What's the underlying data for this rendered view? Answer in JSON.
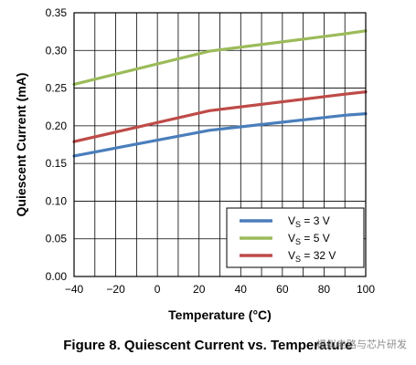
{
  "chart_data": {
    "type": "line",
    "xlabel": "Temperature (°C)",
    "ylabel": "Quiescent Current (mA)",
    "xlim": [
      -40,
      100
    ],
    "ylim": [
      0,
      0.35
    ],
    "x_ticks": [
      -40,
      -20,
      0,
      20,
      40,
      60,
      80,
      100
    ],
    "y_ticks": [
      0.0,
      0.05,
      0.1,
      0.15,
      0.2,
      0.25,
      0.3,
      0.35
    ],
    "grid": true,
    "legend_position": "bottom-right",
    "series": [
      {
        "name": "VS = 3 V",
        "color": "#4a7ebb",
        "x": [
          -40,
          25,
          90,
          100
        ],
        "y": [
          0.16,
          0.194,
          0.214,
          0.216
        ]
      },
      {
        "name": "VS = 5 V",
        "color": "#9bbb59",
        "x": [
          -40,
          25,
          90,
          100
        ],
        "y": [
          0.255,
          0.299,
          0.322,
          0.326
        ]
      },
      {
        "name": "VS = 32 V",
        "color": "#be4b48",
        "x": [
          -40,
          25,
          90,
          100
        ],
        "y": [
          0.179,
          0.22,
          0.242,
          0.245
        ]
      }
    ]
  },
  "legend_labels": [
    {
      "base": "V",
      "sub": "S",
      "rest": " = 3 V"
    },
    {
      "base": "V",
      "sub": "S",
      "rest": " = 5 V"
    },
    {
      "base": "V",
      "sub": "S",
      "rest": " = 32 V"
    }
  ],
  "caption": "Figure 8. Quiescent Current vs. Temperature",
  "watermark": "模拟电路与芯片研发"
}
